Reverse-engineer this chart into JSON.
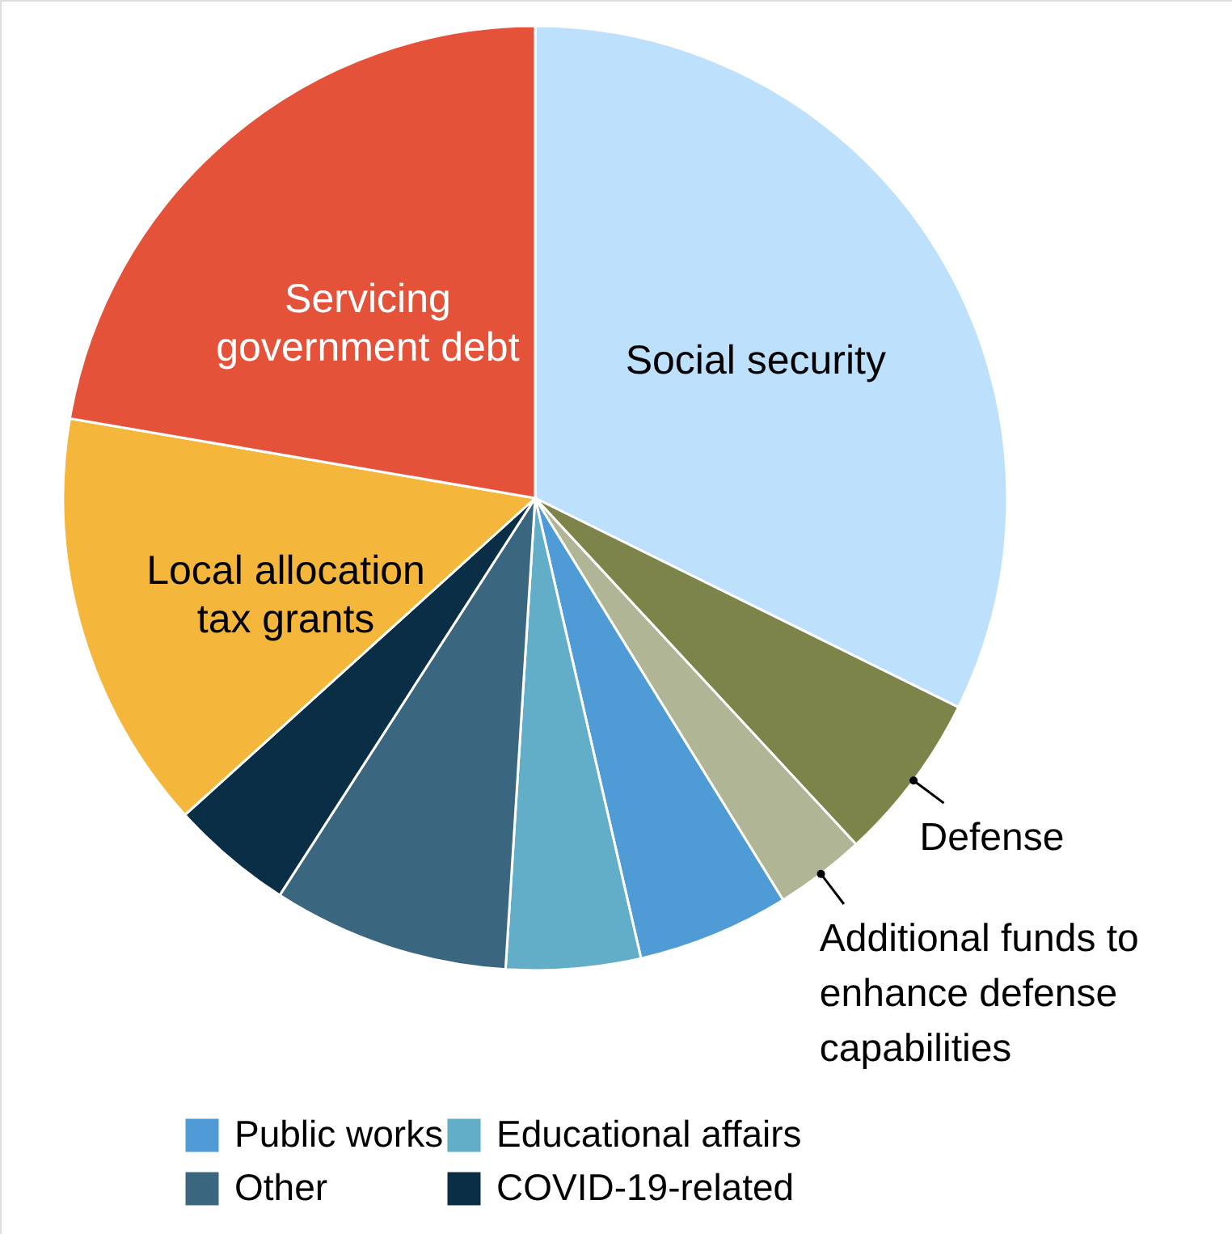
{
  "chart_data": {
    "type": "pie",
    "categories": [
      "Social security",
      "Defense",
      "Additional funds to enhance defense capabilities",
      "Public works",
      "Educational affairs",
      "Other",
      "COVID-19-related",
      "Local allocation tax grants",
      "Servicing government debt"
    ],
    "values": [
      32.3,
      5.8,
      3.1,
      5.2,
      4.6,
      8.1,
      4.2,
      14.4,
      22.3
    ],
    "colors": [
      "#bde0fd",
      "#7d8449",
      "#b0b595",
      "#4e9bd6",
      "#62adc7",
      "#3b6680",
      "#0a2e45",
      "#f4b73c",
      "#e5523a"
    ],
    "legend": "bottom"
  }
}
